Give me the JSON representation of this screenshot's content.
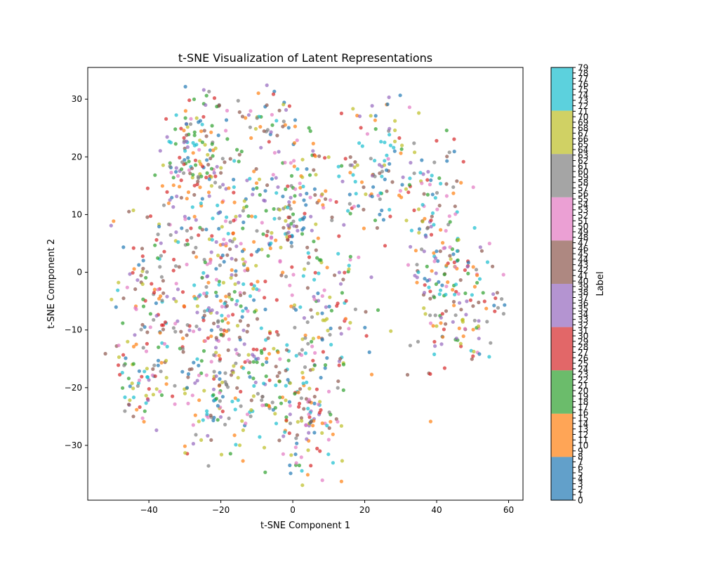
{
  "chart_data": {
    "type": "scatter",
    "title": "t-SNE Visualization of Latent Representations",
    "xlabel": "t-SNE Component 1",
    "ylabel": "t-SNE Component 2",
    "xlim": [
      -57,
      64
    ],
    "ylim": [
      -39.5,
      35.5
    ],
    "xticks": [
      -40,
      -20,
      0,
      20,
      40,
      60
    ],
    "yticks": [
      -30,
      -20,
      -10,
      0,
      10,
      20,
      30
    ],
    "xtick_labels": [
      "−40",
      "−20",
      "0",
      "20",
      "40",
      "60"
    ],
    "ytick_labels": [
      "−30",
      "−20",
      "−10",
      "0",
      "10",
      "20",
      "30"
    ],
    "grid": false,
    "colorbar": {
      "label": "Label",
      "min": 0,
      "max": 79,
      "tick_labels": [
        "0",
        "1",
        "2",
        "3",
        "4",
        "5",
        "6",
        "7",
        "8",
        "9",
        "10",
        "11",
        "12",
        "13",
        "14",
        "15",
        "16",
        "17",
        "18",
        "19",
        "20",
        "21",
        "22",
        "23",
        "24",
        "25",
        "26",
        "27",
        "28",
        "29",
        "30",
        "31",
        "32",
        "33",
        "34",
        "35",
        "36",
        "37",
        "38",
        "39",
        "40",
        "41",
        "42",
        "43",
        "44",
        "45",
        "46",
        "47",
        "48",
        "49",
        "50",
        "51",
        "52",
        "53",
        "54",
        "55",
        "56",
        "57",
        "58",
        "59",
        "60",
        "61",
        "62",
        "63",
        "64",
        "65",
        "66",
        "67",
        "68",
        "69",
        "70",
        "71",
        "72",
        "73",
        "74",
        "75",
        "76",
        "77",
        "78",
        "79"
      ],
      "bands": [
        {
          "from": 0,
          "to": 7.9,
          "color": "#1f77b4"
        },
        {
          "from": 7.9,
          "to": 15.8,
          "color": "#ff7f0e"
        },
        {
          "from": 15.8,
          "to": 23.7,
          "color": "#2ca02c"
        },
        {
          "from": 23.7,
          "to": 31.6,
          "color": "#d62728"
        },
        {
          "from": 31.6,
          "to": 39.5,
          "color": "#9467bd"
        },
        {
          "from": 39.5,
          "to": 47.4,
          "color": "#8c564b"
        },
        {
          "from": 47.4,
          "to": 55.3,
          "color": "#e377c2"
        },
        {
          "from": 55.3,
          "to": 63.2,
          "color": "#7f7f7f"
        },
        {
          "from": 63.2,
          "to": 71.1,
          "color": "#bcbd22"
        },
        {
          "from": 71.1,
          "to": 79,
          "color": "#17becf"
        }
      ]
    },
    "point_opacity": 0.7,
    "clusters": [
      {
        "cx": -28,
        "cy": 20,
        "sx": 5,
        "sy": 6,
        "n": 150
      },
      {
        "cx": -8,
        "cy": 27,
        "sx": 5,
        "sy": 3,
        "n": 40
      },
      {
        "cx": -15,
        "cy": 8,
        "sx": 10,
        "sy": 7,
        "n": 190
      },
      {
        "cx": -40,
        "cy": -5,
        "sx": 5,
        "sy": 7,
        "n": 100
      },
      {
        "cx": -42,
        "cy": -19,
        "sx": 4,
        "sy": 4,
        "n": 60
      },
      {
        "cx": -22,
        "cy": -20,
        "sx": 6,
        "sy": 6,
        "n": 120
      },
      {
        "cx": -5,
        "cy": -20,
        "sx": 8,
        "sy": 6,
        "n": 140
      },
      {
        "cx": 5,
        "cy": -28,
        "sx": 5,
        "sy": 4,
        "n": 70
      },
      {
        "cx": 8,
        "cy": -8,
        "sx": 7,
        "sy": 7,
        "n": 110
      },
      {
        "cx": 2,
        "cy": 12,
        "sx": 6,
        "sy": 8,
        "n": 100
      },
      {
        "cx": 25,
        "cy": 18,
        "sx": 9,
        "sy": 6,
        "n": 130
      },
      {
        "cx": 40,
        "cy": 4,
        "sx": 5,
        "sy": 9,
        "n": 120
      },
      {
        "cx": 48,
        "cy": -5,
        "sx": 6,
        "sy": 6,
        "n": 110
      },
      {
        "cx": -20,
        "cy": -5,
        "sx": 8,
        "sy": 5,
        "n": 100
      }
    ]
  }
}
